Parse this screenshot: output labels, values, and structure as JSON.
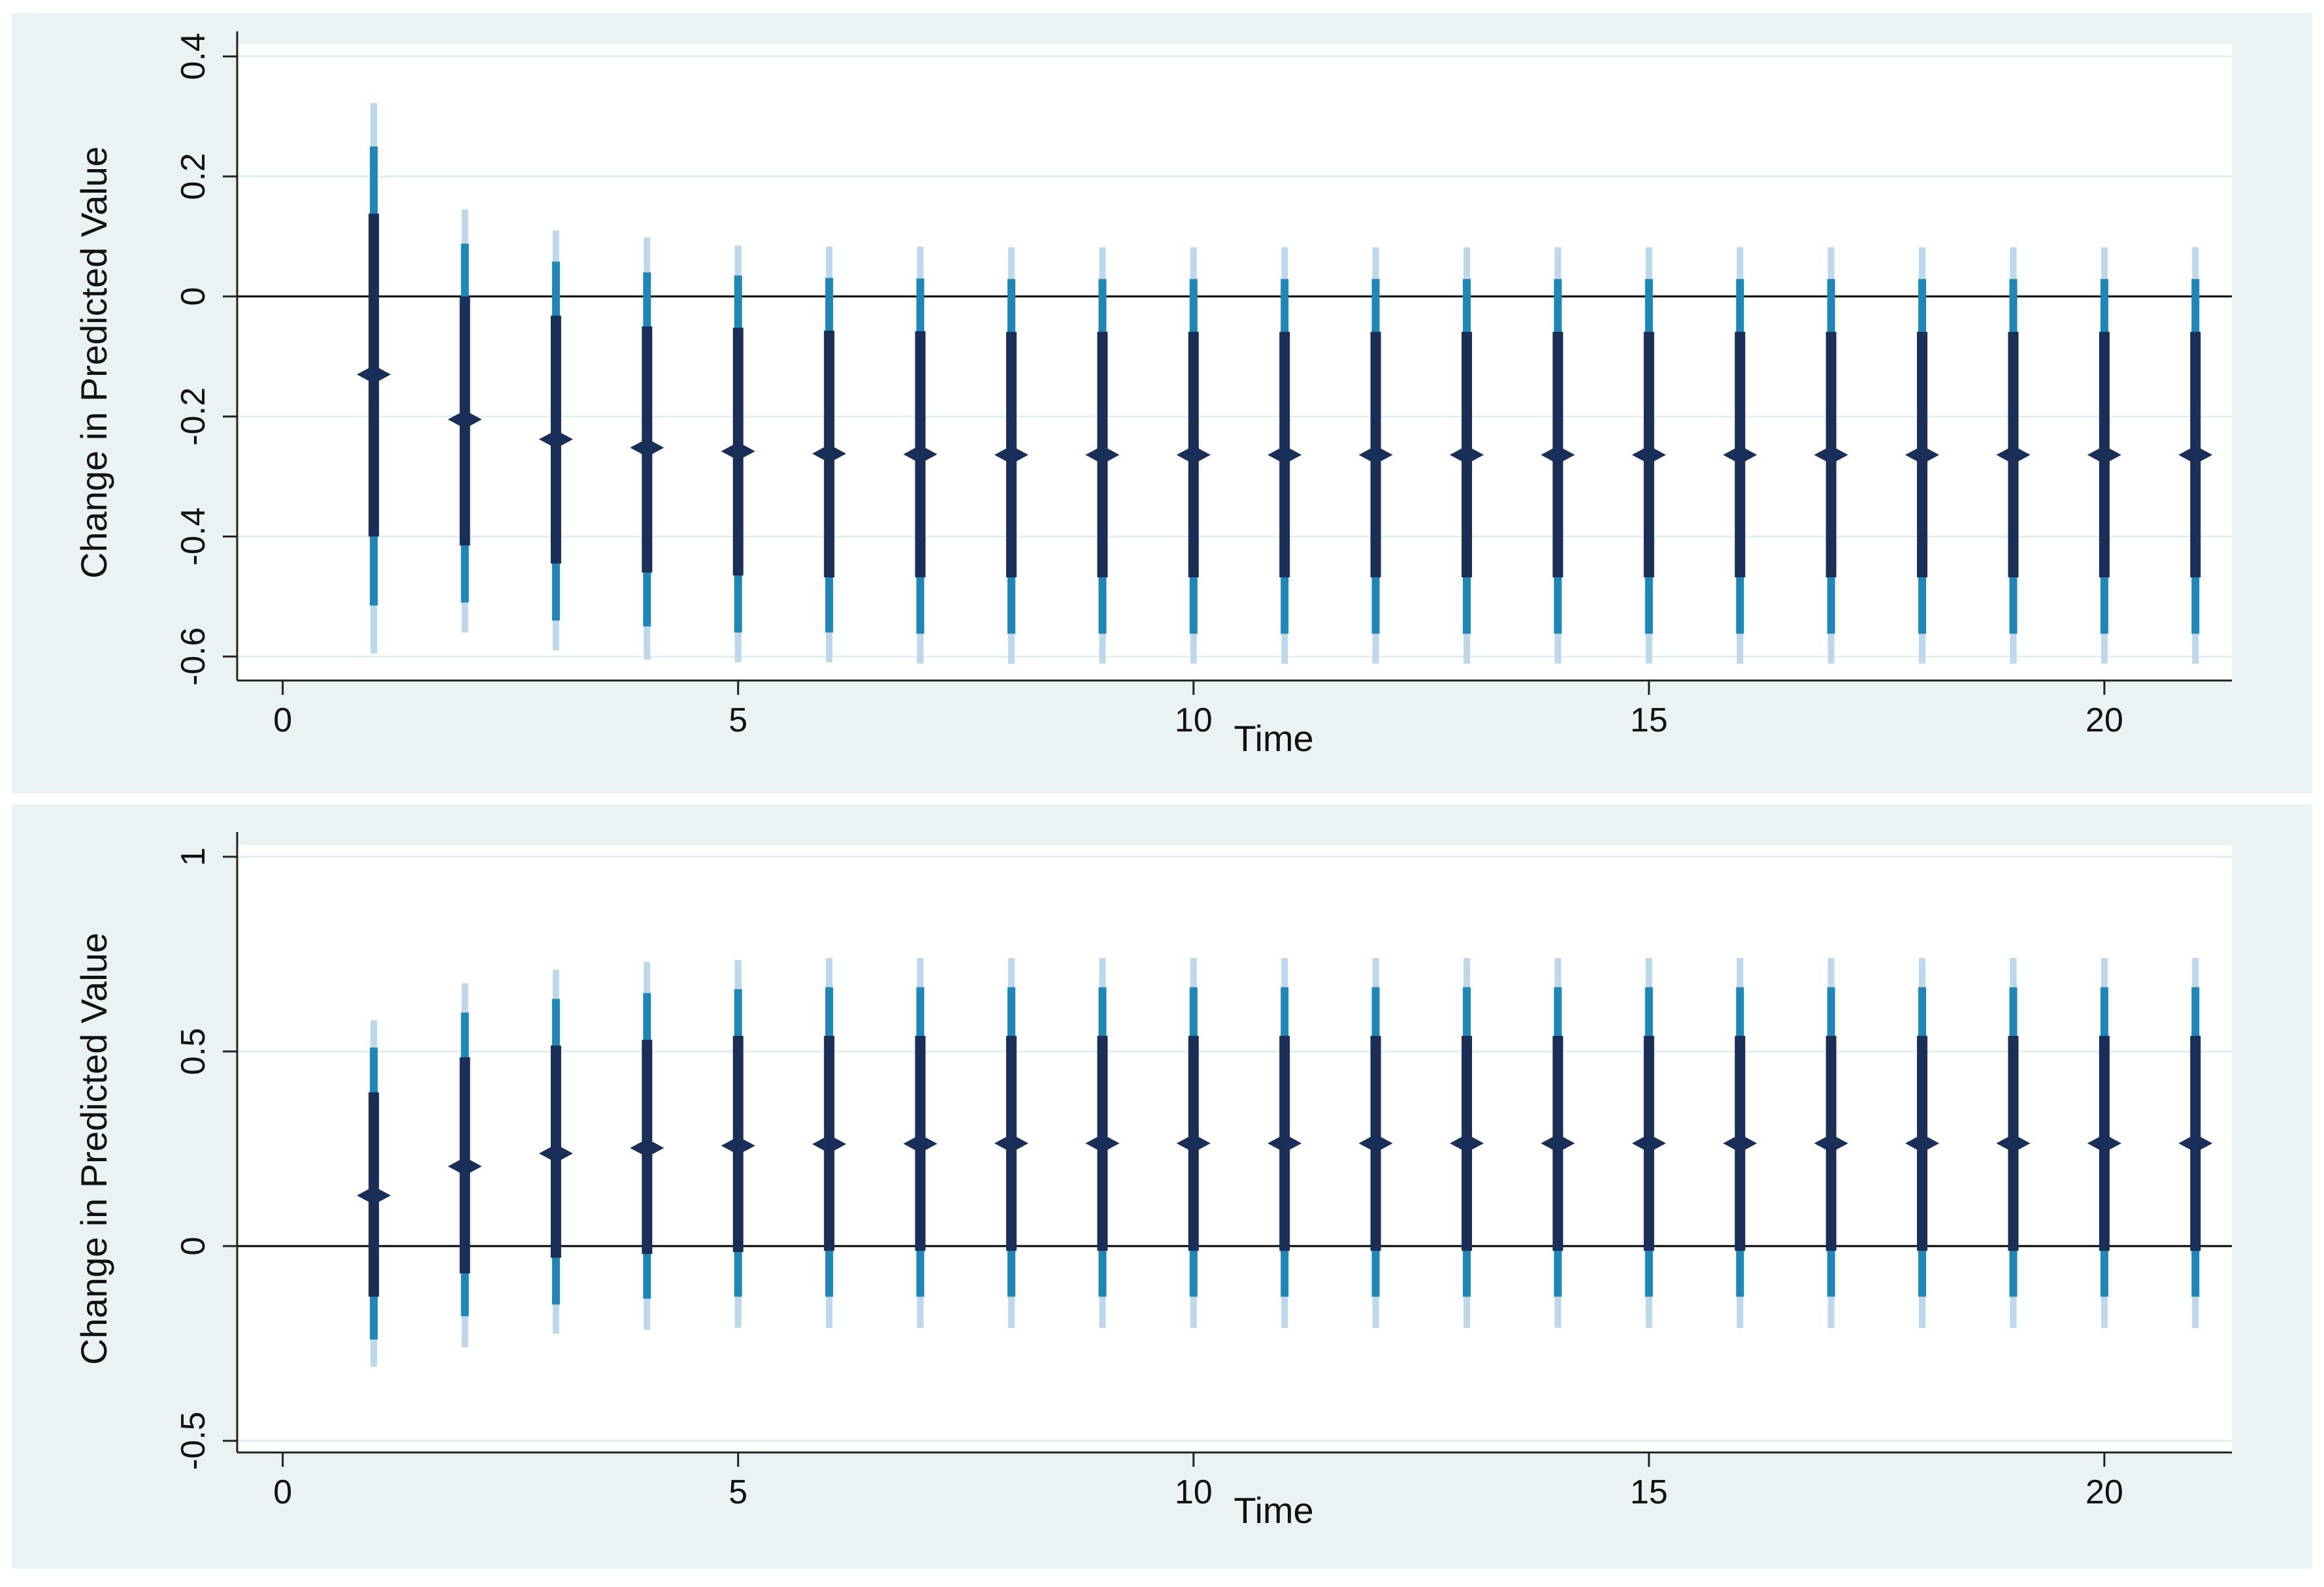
{
  "colors": {
    "panel_background": "#eaf2f3",
    "plot_background": "#ffffff",
    "gridline": "#e2eef0",
    "point_estimate": "#1a2f57",
    "ci_inner": "#1a2f57",
    "ci_middle": "#1f86b8",
    "ci_outer": "#bcd8ea",
    "zero_line": "#000000"
  },
  "chart_data": [
    {
      "type": "scatter",
      "subtype": "point-range with nested confidence intervals",
      "xlabel": "Time",
      "ylabel": "Change in Predicted Value",
      "xlim": [
        -0.5,
        21.4
      ],
      "ylim": [
        -0.64,
        0.42
      ],
      "xticks": [
        0,
        5,
        10,
        15,
        20
      ],
      "xtick_labels": [
        "0",
        "5",
        "10",
        "15",
        "20"
      ],
      "yticks": [
        -0.6,
        -0.4,
        -0.2,
        0,
        0.2,
        0.4
      ],
      "ytick_labels": [
        "-0.6",
        "-0.4",
        "-0.2",
        "0",
        "0.2",
        "0.4"
      ],
      "grid": true,
      "reference_line_y": 0,
      "x": [
        1,
        2,
        3,
        4,
        5,
        6,
        7,
        8,
        9,
        10,
        11,
        12,
        13,
        14,
        15,
        16,
        17,
        18,
        19,
        20,
        21
      ],
      "estimate": [
        -0.13,
        -0.205,
        -0.238,
        -0.252,
        -0.258,
        -0.262,
        -0.263,
        -0.264,
        -0.264,
        -0.264,
        -0.264,
        -0.264,
        -0.264,
        -0.264,
        -0.264,
        -0.264,
        -0.264,
        -0.264,
        -0.264,
        -0.264,
        -0.264
      ],
      "ci_inner_low": [
        -0.4,
        -0.415,
        -0.445,
        -0.46,
        -0.465,
        -0.468,
        -0.468,
        -0.468,
        -0.468,
        -0.468,
        -0.468,
        -0.468,
        -0.468,
        -0.468,
        -0.468,
        -0.468,
        -0.468,
        -0.468,
        -0.468,
        -0.468,
        -0.468
      ],
      "ci_inner_high": [
        0.138,
        0.0,
        -0.032,
        -0.05,
        -0.052,
        -0.057,
        -0.058,
        -0.059,
        -0.059,
        -0.059,
        -0.059,
        -0.059,
        -0.059,
        -0.059,
        -0.059,
        -0.059,
        -0.059,
        -0.059,
        -0.059,
        -0.059,
        -0.059
      ],
      "ci_middle_low": [
        -0.515,
        -0.51,
        -0.54,
        -0.55,
        -0.56,
        -0.56,
        -0.562,
        -0.562,
        -0.562,
        -0.562,
        -0.562,
        -0.562,
        -0.562,
        -0.562,
        -0.562,
        -0.562,
        -0.562,
        -0.562,
        -0.562,
        -0.562,
        -0.562
      ],
      "ci_middle_high": [
        0.25,
        0.088,
        0.058,
        0.04,
        0.035,
        0.031,
        0.03,
        0.029,
        0.029,
        0.029,
        0.029,
        0.029,
        0.029,
        0.029,
        0.029,
        0.029,
        0.029,
        0.029,
        0.029,
        0.029,
        0.029
      ],
      "ci_outer_low": [
        -0.595,
        -0.56,
        -0.59,
        -0.605,
        -0.61,
        -0.61,
        -0.612,
        -0.612,
        -0.612,
        -0.612,
        -0.612,
        -0.612,
        -0.612,
        -0.612,
        -0.612,
        -0.612,
        -0.612,
        -0.612,
        -0.612,
        -0.612,
        -0.612
      ],
      "ci_outer_high": [
        0.322,
        0.145,
        0.11,
        0.098,
        0.085,
        0.083,
        0.083,
        0.082,
        0.082,
        0.082,
        0.082,
        0.082,
        0.082,
        0.082,
        0.082,
        0.082,
        0.082,
        0.082,
        0.082,
        0.082,
        0.082
      ]
    },
    {
      "type": "scatter",
      "subtype": "point-range with nested confidence intervals",
      "xlabel": "Time",
      "ylabel": "Change in Predicted Value",
      "xlim": [
        -0.5,
        21.4
      ],
      "ylim": [
        -0.53,
        1.03
      ],
      "xticks": [
        0,
        5,
        10,
        15,
        20
      ],
      "xtick_labels": [
        "0",
        "5",
        "10",
        "15",
        "20"
      ],
      "yticks": [
        -0.5,
        0,
        0.5,
        1
      ],
      "ytick_labels": [
        "-0.5",
        "0",
        "0.5",
        "1"
      ],
      "grid": true,
      "reference_line_y": 0,
      "x": [
        1,
        2,
        3,
        4,
        5,
        6,
        7,
        8,
        9,
        10,
        11,
        12,
        13,
        14,
        15,
        16,
        17,
        18,
        19,
        20,
        21
      ],
      "estimate": [
        0.13,
        0.205,
        0.238,
        0.252,
        0.258,
        0.262,
        0.263,
        0.264,
        0.264,
        0.264,
        0.264,
        0.264,
        0.264,
        0.264,
        0.264,
        0.264,
        0.264,
        0.264,
        0.264,
        0.264,
        0.264
      ],
      "ci_inner_low": [
        -0.13,
        -0.07,
        -0.03,
        -0.02,
        -0.015,
        -0.012,
        -0.012,
        -0.012,
        -0.012,
        -0.012,
        -0.012,
        -0.012,
        -0.012,
        -0.012,
        -0.012,
        -0.012,
        -0.012,
        -0.012,
        -0.012,
        -0.012,
        -0.012
      ],
      "ci_inner_high": [
        0.395,
        0.485,
        0.515,
        0.53,
        0.54,
        0.54,
        0.54,
        0.54,
        0.54,
        0.54,
        0.54,
        0.54,
        0.54,
        0.54,
        0.54,
        0.54,
        0.54,
        0.54,
        0.54,
        0.54,
        0.54
      ],
      "ci_middle_low": [
        -0.24,
        -0.18,
        -0.15,
        -0.135,
        -0.13,
        -0.13,
        -0.13,
        -0.13,
        -0.13,
        -0.13,
        -0.13,
        -0.13,
        -0.13,
        -0.13,
        -0.13,
        -0.13,
        -0.13,
        -0.13,
        -0.13,
        -0.13,
        -0.13
      ],
      "ci_middle_high": [
        0.51,
        0.6,
        0.635,
        0.65,
        0.66,
        0.665,
        0.665,
        0.665,
        0.665,
        0.665,
        0.665,
        0.665,
        0.665,
        0.665,
        0.665,
        0.665,
        0.665,
        0.665,
        0.665,
        0.665,
        0.665
      ],
      "ci_outer_low": [
        -0.31,
        -0.26,
        -0.225,
        -0.215,
        -0.21,
        -0.21,
        -0.21,
        -0.21,
        -0.21,
        -0.21,
        -0.21,
        -0.21,
        -0.21,
        -0.21,
        -0.21,
        -0.21,
        -0.21,
        -0.21,
        -0.21,
        -0.21,
        -0.21
      ],
      "ci_outer_high": [
        0.58,
        0.675,
        0.71,
        0.73,
        0.735,
        0.74,
        0.74,
        0.74,
        0.74,
        0.74,
        0.74,
        0.74,
        0.74,
        0.74,
        0.74,
        0.74,
        0.74,
        0.74,
        0.74,
        0.74,
        0.74
      ]
    }
  ]
}
